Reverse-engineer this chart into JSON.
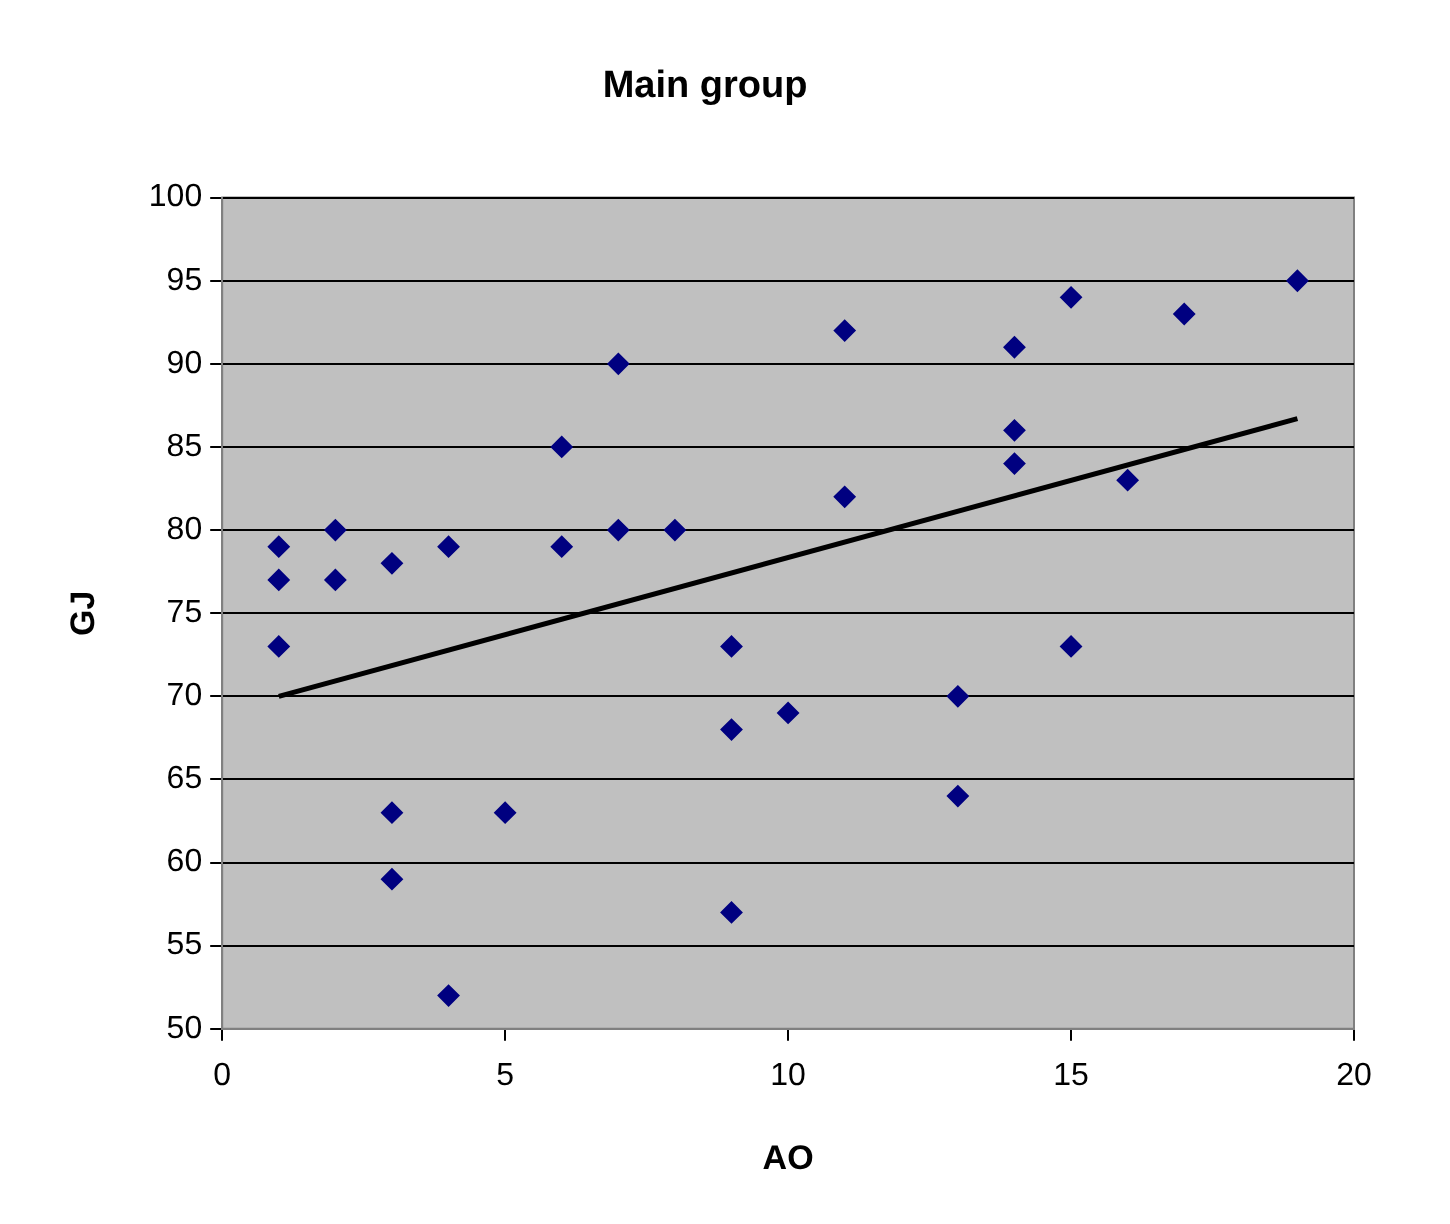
{
  "chart_data": {
    "type": "scatter",
    "title": "Main group",
    "xlabel": "AO",
    "ylabel": "GJ",
    "xlim": [
      0,
      20
    ],
    "ylim": [
      50,
      100
    ],
    "xticks": [
      0,
      5,
      10,
      15,
      20
    ],
    "yticks": [
      50,
      55,
      60,
      65,
      70,
      75,
      80,
      85,
      90,
      95,
      100
    ],
    "grid": "y",
    "marker": "diamond",
    "series": [
      {
        "color": "#000080",
        "x": [
          1,
          1,
          1,
          2,
          2,
          3,
          3,
          3,
          4,
          4,
          5,
          6,
          6,
          7,
          7,
          8,
          9,
          9,
          9,
          10,
          11,
          11,
          13,
          13,
          14,
          14,
          14,
          15,
          15,
          16,
          17,
          19
        ],
        "values": [
          79,
          77,
          73,
          80,
          77,
          78,
          63,
          59,
          79,
          52,
          63,
          85,
          79,
          90,
          80,
          80,
          73,
          68,
          57,
          69,
          92,
          82,
          70,
          64,
          91,
          86,
          84,
          94,
          73,
          83,
          93,
          95
        ]
      },
      {
        "type": "line",
        "color": "#000000",
        "marker": "none",
        "x": [
          1,
          19
        ],
        "values": [
          70,
          86.7
        ]
      }
    ]
  }
}
